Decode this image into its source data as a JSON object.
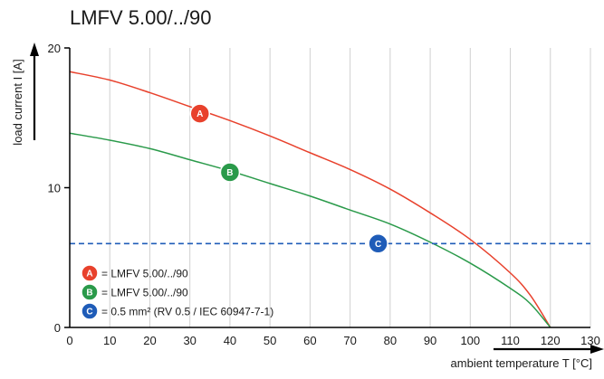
{
  "chart_data": {
    "type": "line",
    "title": "LMFV 5.00/../90",
    "xlabel": "ambient temperature T [°C]",
    "ylabel": "load current I [A]",
    "xlim": [
      0,
      130
    ],
    "ylim": [
      0,
      20
    ],
    "x_ticks": [
      "0",
      "10",
      "20",
      "30",
      "40",
      "50",
      "60",
      "70",
      "80",
      "90",
      "100",
      "110",
      "120",
      "130"
    ],
    "y_ticks": [
      "0",
      "10",
      "20"
    ],
    "grid": "vertical",
    "legend_position": "bottom-left",
    "series": [
      {
        "name": "LMFV 5.00/../90",
        "marker": "A",
        "color": "#e8412c",
        "x": [
          0,
          10,
          20,
          30,
          40,
          50,
          60,
          70,
          80,
          90,
          100,
          110,
          115,
          120
        ],
        "y": [
          18.3,
          17.7,
          16.8,
          15.8,
          14.8,
          13.7,
          12.5,
          11.3,
          9.9,
          8.2,
          6.3,
          3.9,
          2.3,
          0
        ],
        "marker_at": [
          32.5,
          15.3
        ]
      },
      {
        "name": "LMFV 5.00/../90",
        "marker": "B",
        "color": "#2a9a4a",
        "x": [
          0,
          10,
          20,
          30,
          40,
          50,
          60,
          70,
          80,
          90,
          100,
          110,
          115,
          120
        ],
        "y": [
          13.9,
          13.4,
          12.8,
          12.0,
          11.2,
          10.3,
          9.4,
          8.4,
          7.4,
          6.1,
          4.6,
          2.8,
          1.7,
          0
        ],
        "marker_at": [
          40,
          11.1
        ]
      },
      {
        "name": "0.5 mm² (RV 0.5 / IEC 60947-7-1)",
        "marker": "C",
        "color": "#1f5cb8",
        "style": "dashed",
        "x": [
          0,
          130
        ],
        "y": [
          6,
          6
        ],
        "marker_at": [
          77,
          6
        ]
      }
    ]
  }
}
